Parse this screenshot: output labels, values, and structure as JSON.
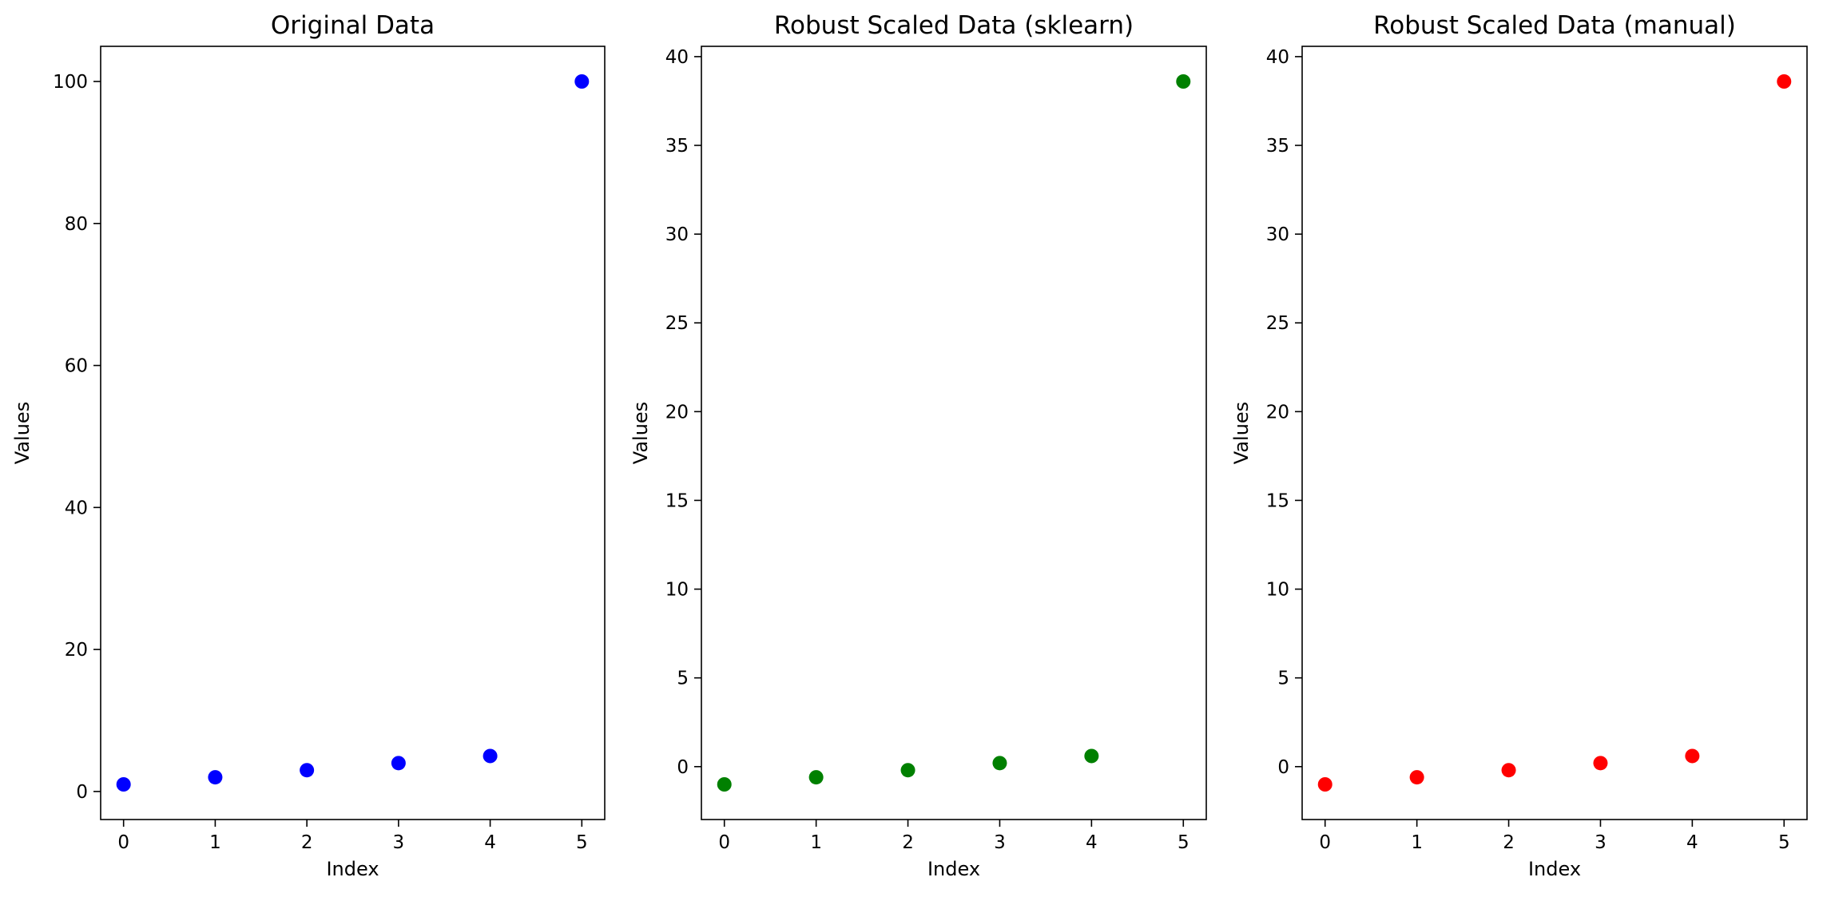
{
  "chart_data": [
    {
      "type": "scatter",
      "title": "Original Data",
      "xlabel": "Index",
      "ylabel": "Values",
      "x": [
        0,
        1,
        2,
        3,
        4,
        5
      ],
      "y": [
        1,
        2,
        3,
        4,
        5,
        100
      ],
      "color": "#0000ff",
      "xlim": [
        -0.25,
        5.25
      ],
      "ylim": [
        -3.95,
        104.95
      ],
      "xticks": [
        0,
        1,
        2,
        3,
        4,
        5
      ],
      "yticks": [
        0,
        20,
        40,
        60,
        80,
        100
      ],
      "xtick_labels": [
        "0",
        "1",
        "2",
        "3",
        "4",
        "5"
      ],
      "ytick_labels": [
        "0",
        "20",
        "40",
        "60",
        "80",
        "100"
      ],
      "grid": false
    },
    {
      "type": "scatter",
      "title": "Robust Scaled Data (sklearn)",
      "xlabel": "Index",
      "ylabel": "Values",
      "x": [
        0,
        1,
        2,
        3,
        4,
        5
      ],
      "y": [
        -1.0,
        -0.6,
        -0.2,
        0.2,
        0.6,
        38.6
      ],
      "color": "#008000",
      "xlim": [
        -0.25,
        5.25
      ],
      "ylim": [
        -2.98,
        40.58
      ],
      "xticks": [
        0,
        1,
        2,
        3,
        4,
        5
      ],
      "yticks": [
        0,
        5,
        10,
        15,
        20,
        25,
        30,
        35,
        40
      ],
      "xtick_labels": [
        "0",
        "1",
        "2",
        "3",
        "4",
        "5"
      ],
      "ytick_labels": [
        "0",
        "5",
        "10",
        "15",
        "20",
        "25",
        "30",
        "35",
        "40"
      ],
      "grid": false
    },
    {
      "type": "scatter",
      "title": "Robust Scaled Data (manual)",
      "xlabel": "Index",
      "ylabel": "Values",
      "x": [
        0,
        1,
        2,
        3,
        4,
        5
      ],
      "y": [
        -1.0,
        -0.6,
        -0.2,
        0.2,
        0.6,
        38.6
      ],
      "color": "#ff0000",
      "xlim": [
        -0.25,
        5.25
      ],
      "ylim": [
        -2.98,
        40.58
      ],
      "xticks": [
        0,
        1,
        2,
        3,
        4,
        5
      ],
      "yticks": [
        0,
        5,
        10,
        15,
        20,
        25,
        30,
        35,
        40
      ],
      "xtick_labels": [
        "0",
        "1",
        "2",
        "3",
        "4",
        "5"
      ],
      "ytick_labels": [
        "0",
        "5",
        "10",
        "15",
        "20",
        "25",
        "30",
        "35",
        "40"
      ],
      "grid": false
    }
  ]
}
